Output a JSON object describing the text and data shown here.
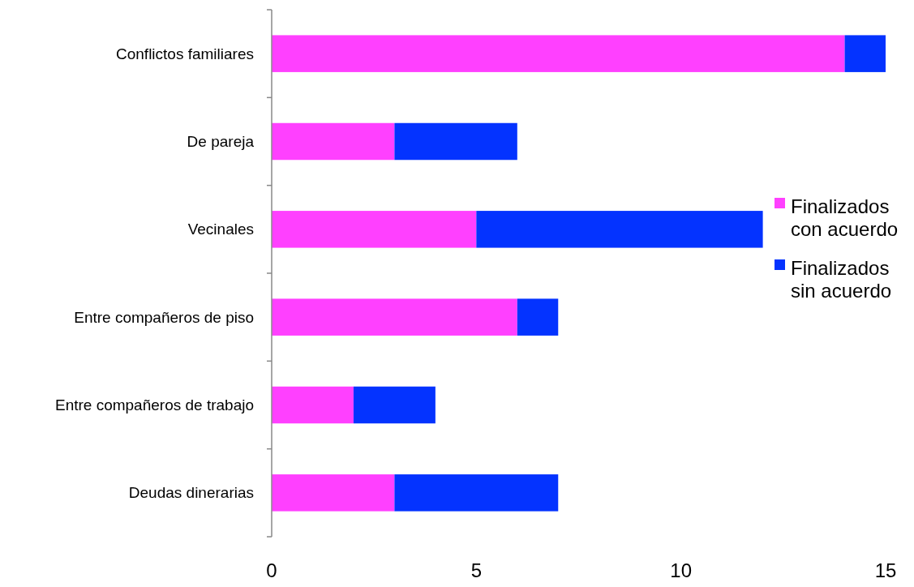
{
  "chart_data": {
    "type": "bar",
    "orientation": "horizontal",
    "stacked": true,
    "categories": [
      "Conflictos familiares",
      "De pareja",
      "Vecinales",
      "Entre compañeros de piso",
      "Entre compañeros de trabajo",
      "Deudas dinerarias"
    ],
    "series": [
      {
        "name": "Finalizados con acuerdo",
        "color": "#ff40ff",
        "values": [
          14,
          3,
          5,
          6,
          2,
          3
        ]
      },
      {
        "name": "Finalizados sin acuerdo",
        "color": "#0433ff",
        "values": [
          1,
          3,
          7,
          1,
          2,
          4
        ]
      }
    ],
    "xlim": [
      0,
      15
    ],
    "xticks": [
      0,
      5,
      10,
      15
    ],
    "grid": false,
    "legend": "right"
  }
}
